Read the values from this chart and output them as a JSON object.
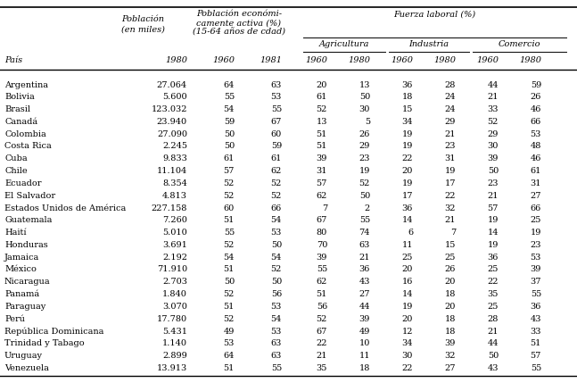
{
  "header1_line1": "Población",
  "header1_line2": "(en miles)",
  "header2_line1": "Población económi-",
  "header2_line2": "camente activa (%)",
  "header2_line3": "(15-64 años de cdad)",
  "header3": "Fuerza laboral (%)",
  "subheader_agri": "Agricultura",
  "subheader_ind": "Industria",
  "subheader_com": "Comercio",
  "col_pais": "País",
  "col_pob": "1980",
  "col_pea1960": "1960",
  "col_pea1981": "1981",
  "col_agri1960": "1960",
  "col_agri1980": "1980",
  "col_ind1960": "1960",
  "col_ind1980": "1980",
  "col_com1960": "1960",
  "col_com1980": "1980",
  "rows": [
    [
      "Argentina",
      "27.064",
      "64",
      "63",
      "20",
      "13",
      "36",
      "28",
      "44",
      "59"
    ],
    [
      "Bolivia",
      "5.600",
      "55",
      "53",
      "61",
      "50",
      "18",
      "24",
      "21",
      "26"
    ],
    [
      "Brasil",
      "123.032",
      "54",
      "55",
      "52",
      "30",
      "15",
      "24",
      "33",
      "46"
    ],
    [
      "Canadá",
      "23.940",
      "59",
      "67",
      "13",
      "5",
      "34",
      "29",
      "52",
      "66"
    ],
    [
      "Colombia",
      "27.090",
      "50",
      "60",
      "51",
      "26",
      "19",
      "21",
      "29",
      "53"
    ],
    [
      "Costa Rica",
      "2.245",
      "50",
      "59",
      "51",
      "29",
      "19",
      "23",
      "30",
      "48"
    ],
    [
      "Cuba",
      "9.833",
      "61",
      "61",
      "39",
      "23",
      "22",
      "31",
      "39",
      "46"
    ],
    [
      "Chile",
      "11.104",
      "57",
      "62",
      "31",
      "19",
      "20",
      "19",
      "50",
      "61"
    ],
    [
      "Ecuador",
      "8.354",
      "52",
      "52",
      "57",
      "52",
      "19",
      "17",
      "23",
      "31"
    ],
    [
      "El Salvador",
      "4.813",
      "52",
      "52",
      "62",
      "50",
      "17",
      "22",
      "21",
      "27"
    ],
    [
      "Estados Unidos de América",
      "227.158",
      "60",
      "66",
      "7",
      "2",
      "36",
      "32",
      "57",
      "66"
    ],
    [
      "Guatemala",
      "7.260",
      "51",
      "54",
      "67",
      "55",
      "14",
      "21",
      "19",
      "25"
    ],
    [
      "Haití",
      "5.010",
      "55",
      "53",
      "80",
      "74",
      "6",
      "7",
      "14",
      "19"
    ],
    [
      "Honduras",
      "3.691",
      "52",
      "50",
      "70",
      "63",
      "11",
      "15",
      "19",
      "23"
    ],
    [
      "Jamaica",
      "2.192",
      "54",
      "54",
      "39",
      "21",
      "25",
      "25",
      "36",
      "53"
    ],
    [
      "México",
      "71.910",
      "51",
      "52",
      "55",
      "36",
      "20",
      "26",
      "25",
      "39"
    ],
    [
      "Nicaragua",
      "2.703",
      "50",
      "50",
      "62",
      "43",
      "16",
      "20",
      "22",
      "37"
    ],
    [
      "Panamá",
      "1.840",
      "52",
      "56",
      "51",
      "27",
      "14",
      "18",
      "35",
      "55"
    ],
    [
      "Paraguay",
      "3.070",
      "51",
      "53",
      "56",
      "44",
      "19",
      "20",
      "25",
      "36"
    ],
    [
      "Perú",
      "17.780",
      "52",
      "54",
      "52",
      "39",
      "20",
      "18",
      "28",
      "43"
    ],
    [
      "República Dominicana",
      "5.431",
      "49",
      "53",
      "67",
      "49",
      "12",
      "18",
      "21",
      "33"
    ],
    [
      "Trinidad y Tabago",
      "1.140",
      "53",
      "63",
      "22",
      "10",
      "34",
      "39",
      "44",
      "51"
    ],
    [
      "Uruguay",
      "2.899",
      "64",
      "63",
      "21",
      "11",
      "30",
      "32",
      "50",
      "57"
    ],
    [
      "Venezuela",
      "13.913",
      "51",
      "55",
      "35",
      "18",
      "22",
      "27",
      "43",
      "55"
    ]
  ],
  "fs_header": 7.0,
  "fs_data": 7.0,
  "bg_color": "white"
}
